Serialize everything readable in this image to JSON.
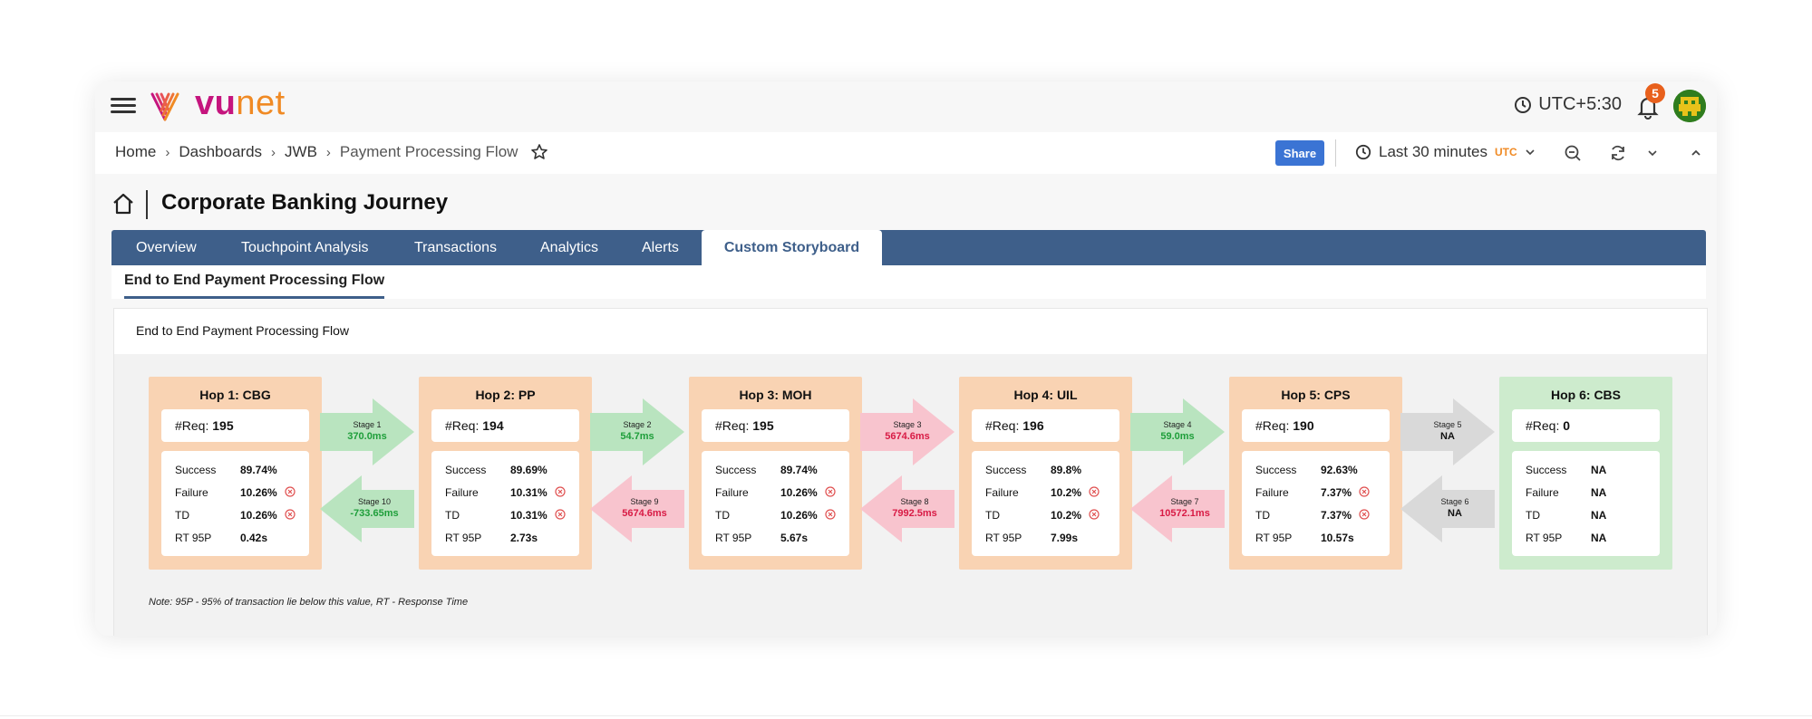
{
  "brand": {
    "part1": "vu",
    "part2": "net"
  },
  "timezone": "UTC+5:30",
  "notifications": {
    "count": "5"
  },
  "breadcrumb": [
    {
      "label": "Home"
    },
    {
      "label": "Dashboards"
    },
    {
      "label": "JWB"
    },
    {
      "label": "Payment Processing Flow"
    }
  ],
  "toolbar": {
    "share_label": "Share",
    "time_range": "Last 30 minutes",
    "tz_label": "UTC"
  },
  "page": {
    "title": "Corporate Banking Journey"
  },
  "tabs": [
    {
      "label": "Overview"
    },
    {
      "label": "Touchpoint Analysis"
    },
    {
      "label": "Transactions"
    },
    {
      "label": "Analytics"
    },
    {
      "label": "Alerts"
    },
    {
      "label": "Custom Storyboard",
      "active": true
    }
  ],
  "subtab": {
    "label": "End to End Payment Processing Flow"
  },
  "panel": {
    "title": "End to End Payment Processing Flow",
    "note": "Note: 95P - 95% of transaction lie below this value, RT - Response Time"
  },
  "metric_labels": {
    "req": "#Req:",
    "success": "Success",
    "failure": "Failure",
    "td": "TD",
    "rt": "RT 95P"
  },
  "colors": {
    "hop_orange": "#f9d3b3",
    "hop_green": "#cdebcd",
    "arrow_green": "#b9e4bf",
    "arrow_red": "#f8c4ce",
    "arrow_gray": "#d9d9d9",
    "value_green": "#1e9e3a",
    "value_red": "#d81b45",
    "tab_bar": "#3e5f8a"
  },
  "hops": [
    {
      "title": "Hop 1: CBG",
      "req": "195",
      "success": "89.74%",
      "failure": "10.26%",
      "td": "10.26%",
      "rt": "0.42s",
      "color": "orange",
      "failure_alert": true,
      "td_alert": true
    },
    {
      "title": "Hop 2: PP",
      "req": "194",
      "success": "89.69%",
      "failure": "10.31%",
      "td": "10.31%",
      "rt": "2.73s",
      "color": "orange",
      "failure_alert": true,
      "td_alert": true
    },
    {
      "title": "Hop 3: MOH",
      "req": "195",
      "success": "89.74%",
      "failure": "10.26%",
      "td": "10.26%",
      "rt": "5.67s",
      "color": "orange",
      "failure_alert": true,
      "td_alert": true
    },
    {
      "title": "Hop 4: UIL",
      "req": "196",
      "success": "89.8%",
      "failure": "10.2%",
      "td": "10.2%",
      "rt": "7.99s",
      "color": "orange",
      "failure_alert": true,
      "td_alert": true
    },
    {
      "title": "Hop 5: CPS",
      "req": "190",
      "success": "92.63%",
      "failure": "7.37%",
      "td": "7.37%",
      "rt": "10.57s",
      "color": "orange",
      "failure_alert": true,
      "td_alert": true
    },
    {
      "title": "Hop 6: CBS",
      "req": "0",
      "success": "NA",
      "failure": "NA",
      "td": "NA",
      "rt": "NA",
      "color": "green",
      "failure_alert": false,
      "td_alert": false
    }
  ],
  "forward_stages": [
    {
      "stage": "Stage 1",
      "value": "370.0ms",
      "status": "green"
    },
    {
      "stage": "Stage 2",
      "value": "54.7ms",
      "status": "green"
    },
    {
      "stage": "Stage 3",
      "value": "5674.6ms",
      "status": "red"
    },
    {
      "stage": "Stage 4",
      "value": "59.0ms",
      "status": "green"
    },
    {
      "stage": "Stage 5",
      "value": "NA",
      "status": "gray"
    }
  ],
  "backward_stages": [
    {
      "stage": "Stage 10",
      "value": "-733.65ms",
      "status": "green"
    },
    {
      "stage": "Stage 9",
      "value": "5674.6ms",
      "status": "red"
    },
    {
      "stage": "Stage 8",
      "value": "7992.5ms",
      "status": "red"
    },
    {
      "stage": "Stage 7",
      "value": "10572.1ms",
      "status": "red"
    },
    {
      "stage": "Stage 6",
      "value": "NA",
      "status": "gray"
    }
  ]
}
